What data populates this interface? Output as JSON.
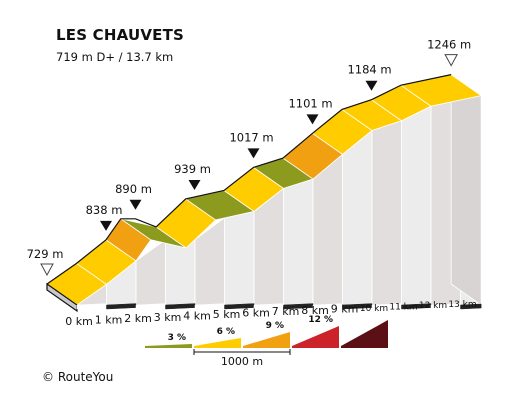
{
  "chart_data": {
    "type": "area",
    "title": "LES CHAUVETS",
    "subtitle": "719 m D+ / 13.7 km",
    "x_unit": "km",
    "y_unit": "m",
    "x_ticks": [
      0,
      1,
      2,
      3,
      4,
      5,
      6,
      7,
      8,
      9,
      10,
      11,
      12,
      13
    ],
    "x_tick_labels": [
      "0 km",
      "1 km",
      "2 km",
      "3 km",
      "4 km",
      "5 km",
      "6 km",
      "7 km",
      "8 km",
      "9 km",
      "10 km",
      "11 km",
      "12 km",
      "13 km"
    ],
    "profile": [
      {
        "km": 0,
        "m": 729
      },
      {
        "km": 1,
        "m": 780
      },
      {
        "km": 2,
        "m": 838
      },
      {
        "km": 2.5,
        "m": 890
      },
      {
        "km": 3,
        "m": 890
      },
      {
        "km": 3.7,
        "m": 870
      },
      {
        "km": 4.7,
        "m": 939
      },
      {
        "km": 6,
        "m": 960
      },
      {
        "km": 7,
        "m": 1017
      },
      {
        "km": 8,
        "m": 1040
      },
      {
        "km": 9,
        "m": 1101
      },
      {
        "km": 10,
        "m": 1160
      },
      {
        "km": 11,
        "m": 1184
      },
      {
        "km": 12,
        "m": 1220
      },
      {
        "km": 13.7,
        "m": 1246
      }
    ],
    "segments": [
      {
        "from_km": 0,
        "to_km": 1,
        "grade_class": "6 %"
      },
      {
        "from_km": 1,
        "to_km": 2,
        "grade_class": "6 %"
      },
      {
        "from_km": 2,
        "to_km": 2.5,
        "grade_class": "9 %"
      },
      {
        "from_km": 2.5,
        "to_km": 3.7,
        "grade_class": "3 %"
      },
      {
        "from_km": 3.7,
        "to_km": 4.7,
        "grade_class": "6 %"
      },
      {
        "from_km": 4.7,
        "to_km": 6,
        "grade_class": "3 %"
      },
      {
        "from_km": 6,
        "to_km": 7,
        "grade_class": "6 %"
      },
      {
        "from_km": 7,
        "to_km": 8,
        "grade_class": "3 %"
      },
      {
        "from_km": 8,
        "to_km": 9,
        "grade_class": "9 %"
      },
      {
        "from_km": 9,
        "to_km": 10,
        "grade_class": "6 %"
      },
      {
        "from_km": 10,
        "to_km": 11,
        "grade_class": "6 %"
      },
      {
        "from_km": 11,
        "to_km": 12,
        "grade_class": "6 %"
      },
      {
        "from_km": 12,
        "to_km": 13.7,
        "grade_class": "6 %"
      }
    ],
    "annotations": [
      {
        "km": 0,
        "m": 729,
        "label": "729 m",
        "marker": "open"
      },
      {
        "km": 2,
        "m": 838,
        "label": "838 m",
        "marker": "filled"
      },
      {
        "km": 3,
        "m": 890,
        "label": "890 m",
        "marker": "filled"
      },
      {
        "km": 5,
        "m": 939,
        "label": "939 m",
        "marker": "filled"
      },
      {
        "km": 7,
        "m": 1017,
        "label": "1017 m",
        "marker": "filled"
      },
      {
        "km": 9,
        "m": 1101,
        "label": "1101 m",
        "marker": "filled"
      },
      {
        "km": 11,
        "m": 1184,
        "label": "1184 m",
        "marker": "filled"
      },
      {
        "km": 13.7,
        "m": 1246,
        "label": "1246 m",
        "marker": "open"
      }
    ],
    "legend": {
      "entries": [
        {
          "label": "3 %",
          "color": "#8c9a1e"
        },
        {
          "label": "6 %",
          "color": "#ffcc00"
        },
        {
          "label": "9 %",
          "color": "#f0a010"
        },
        {
          "label": "12 %",
          "color": "#cc2229"
        },
        {
          "label": "",
          "color": "#5a1014"
        }
      ],
      "scale_label": "1000 m"
    },
    "colors": {
      "side_fill": "#e8e4e4",
      "front_face": "#c8c8c8",
      "outline": "#111111",
      "km_band_dark": "#222222"
    }
  },
  "footer": {
    "copyright_symbol": "©",
    "copyright_text": "RouteYou"
  }
}
